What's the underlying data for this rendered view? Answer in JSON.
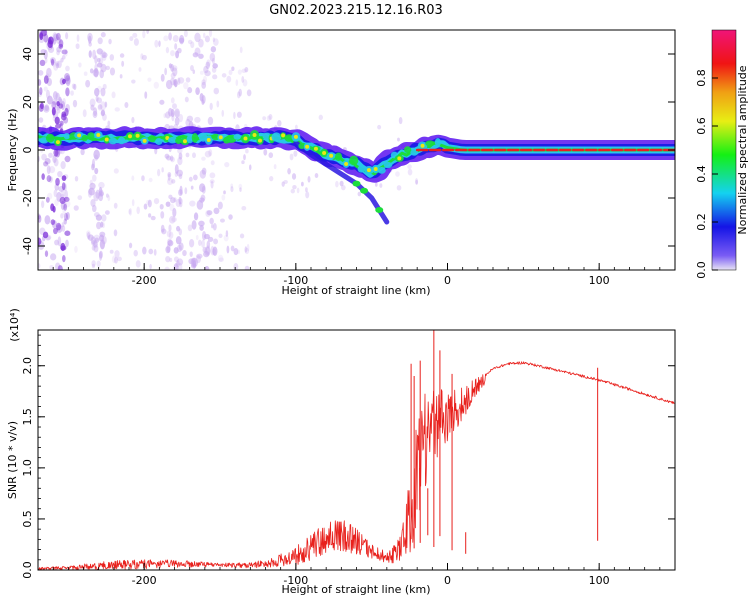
{
  "figure_title": "GN02.2023.215.12.16.R03",
  "colors": {
    "signal_line": "#e8201c",
    "strong_band": "#e82020",
    "green_band": "#1cdc3c",
    "cyan_core": "#28c8e8",
    "violet_edge": "#5a14f0",
    "haze": "#c7a8f0"
  },
  "chart_data": [
    {
      "type": "heatmap",
      "xlabel": "Height of straight line (km)",
      "ylabel": "Frequency (Hz)",
      "xlim": [
        -270,
        150
      ],
      "ylim": [
        -50,
        50
      ],
      "xticks": [
        -200,
        -100,
        0,
        100
      ],
      "yticks": [
        -40,
        -20,
        0,
        20,
        40
      ],
      "xtick_labels": [
        "-200",
        "-100",
        "0",
        "100"
      ],
      "ytick_labels": [
        "-40",
        "-20",
        "0",
        "20",
        "40"
      ],
      "colorbar": {
        "label": "Normalized spectral amplitude",
        "range": [
          0,
          1
        ],
        "ticks": [
          0.0,
          0.2,
          0.4,
          0.6,
          0.8
        ],
        "tick_labels": [
          "0.0",
          "0.2",
          "0.4",
          "0.6",
          "0.8"
        ]
      },
      "ridge": {
        "x": [
          -270,
          -250,
          -230,
          -200,
          -150,
          -110,
          -100,
          -90,
          -80,
          -70,
          -60,
          -50,
          -45,
          -40,
          -30,
          -20,
          -10,
          -5,
          0,
          10,
          50,
          100,
          150
        ],
        "y": [
          5,
          4.5,
          5,
          5,
          5,
          5,
          4,
          1,
          -2,
          -4,
          -6,
          -10,
          -8,
          -5,
          -2,
          0,
          2,
          3,
          1,
          0,
          0,
          0,
          0
        ]
      },
      "branch": {
        "x": [
          -100,
          -90,
          -80,
          -70,
          -60,
          -50,
          -40
        ],
        "y": [
          3,
          -2,
          -6,
          -10,
          -14,
          -20,
          -30
        ]
      }
    },
    {
      "type": "line",
      "xlabel": "Height of straight line (km)",
      "ylabel": "SNR (10 * v/v)",
      "y_multiplier": "(x10⁴)",
      "xlim": [
        -270,
        150
      ],
      "ylim": [
        0,
        2.35
      ],
      "xticks": [
        -200,
        -100,
        0,
        100
      ],
      "yticks": [
        0.0,
        0.5,
        1.0,
        1.5,
        2.0
      ],
      "xtick_labels": [
        "-200",
        "-100",
        "0",
        "100"
      ],
      "ytick_labels": [
        "0.0",
        "0.5",
        "1.0",
        "1.5",
        "2.0"
      ],
      "envelope": {
        "x": [
          -270,
          -250,
          -230,
          -210,
          -180,
          -150,
          -130,
          -115,
          -100,
          -90,
          -80,
          -70,
          -60,
          -50,
          -40,
          -32,
          -25,
          -20,
          -15,
          -10,
          0,
          10,
          20,
          30,
          40,
          50,
          60,
          80,
          100,
          120,
          150
        ],
        "y": [
          0.02,
          0.03,
          0.06,
          0.08,
          0.08,
          0.06,
          0.06,
          0.1,
          0.18,
          0.3,
          0.4,
          0.42,
          0.35,
          0.22,
          0.15,
          0.25,
          0.7,
          1.25,
          1.5,
          1.6,
          1.65,
          1.72,
          1.85,
          1.97,
          2.02,
          2.03,
          2.0,
          1.93,
          1.86,
          1.77,
          1.63
        ]
      },
      "noise": {
        "x": [
          -270,
          -250,
          -230,
          -210,
          -180,
          -150,
          -130,
          -115,
          -100,
          -90,
          -80,
          -70,
          -60,
          -50,
          -40,
          -32,
          -25,
          -20,
          -15,
          -10,
          0,
          10,
          20,
          30,
          40,
          50,
          60,
          80,
          100,
          120,
          150
        ],
        "y": [
          0.01,
          0.02,
          0.04,
          0.05,
          0.04,
          0.02,
          0.03,
          0.05,
          0.1,
          0.14,
          0.18,
          0.18,
          0.14,
          0.08,
          0.06,
          0.12,
          0.4,
          0.55,
          0.5,
          0.4,
          0.28,
          0.18,
          0.08,
          0.04,
          0.01,
          0.01,
          0.01,
          0.01,
          0.01,
          0.01,
          0.01
        ]
      },
      "spikes": [
        {
          "x": -24,
          "y": 2.02
        },
        {
          "x": -22,
          "y": 1.9
        },
        {
          "x": -18,
          "y": 2.05
        },
        {
          "x": -13,
          "y": 0.8
        },
        {
          "x": -9,
          "y": 2.35
        },
        {
          "x": -5,
          "y": 2.15
        },
        {
          "x": 3,
          "y": 1.92
        },
        {
          "x": 12,
          "y": 0.37
        },
        {
          "x": 99,
          "y": 1.98
        }
      ]
    }
  ]
}
